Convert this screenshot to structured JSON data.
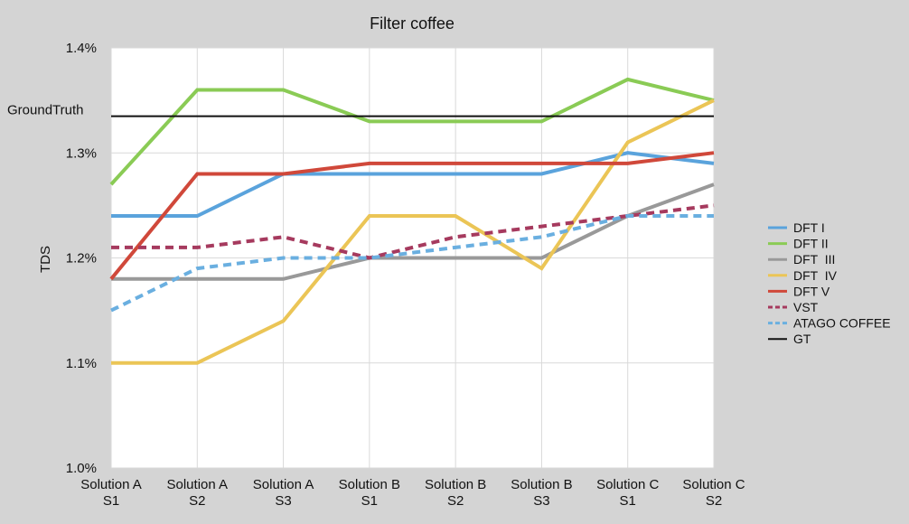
{
  "chart_data": {
    "type": "line",
    "title": "Filter coffee",
    "xlabel": "",
    "ylabel": "TDS",
    "ylim": [
      1.0,
      1.4
    ],
    "y_ticks": [
      1.0,
      1.1,
      1.2,
      1.3,
      1.4
    ],
    "y_tick_labels": [
      "1.0%",
      "1.1%",
      "1.2%",
      "1.3%",
      "1.4%"
    ],
    "grid": true,
    "legend_position": "right",
    "categories": [
      [
        "Solution A",
        "S1"
      ],
      [
        "Solution A",
        "S2"
      ],
      [
        "Solution A",
        "S3"
      ],
      [
        "Solution B",
        "S1"
      ],
      [
        "Solution B",
        "S2"
      ],
      [
        "Solution B",
        "S3"
      ],
      [
        "Solution C",
        "S1"
      ],
      [
        "Solution C",
        "S2"
      ]
    ],
    "series": [
      {
        "name": "DFT I",
        "color": "#5aa3dc",
        "dash": false,
        "values": [
          1.24,
          1.24,
          1.28,
          1.28,
          1.28,
          1.28,
          1.3,
          1.29
        ]
      },
      {
        "name": "DFT II",
        "color": "#8acb55",
        "dash": false,
        "values": [
          1.27,
          1.36,
          1.36,
          1.33,
          1.33,
          1.33,
          1.37,
          1.35
        ]
      },
      {
        "name": "DFT  III",
        "color": "#999999",
        "dash": false,
        "values": [
          1.18,
          1.18,
          1.18,
          1.2,
          1.2,
          1.2,
          1.24,
          1.27
        ]
      },
      {
        "name": "DFT  IV",
        "color": "#ebc556",
        "dash": false,
        "values": [
          1.1,
          1.1,
          1.14,
          1.24,
          1.24,
          1.19,
          1.31,
          1.35
        ]
      },
      {
        "name": "DFT V",
        "color": "#d0483a",
        "dash": false,
        "values": [
          1.18,
          1.28,
          1.28,
          1.29,
          1.29,
          1.29,
          1.29,
          1.3
        ]
      },
      {
        "name": "VST",
        "color": "#a63a5e",
        "dash": true,
        "values": [
          1.21,
          1.21,
          1.22,
          1.2,
          1.22,
          1.23,
          1.24,
          1.25
        ]
      },
      {
        "name": "ATAGO COFFEE",
        "color": "#6aafe0",
        "dash": true,
        "values": [
          1.15,
          1.19,
          1.2,
          1.2,
          1.21,
          1.22,
          1.24,
          1.24
        ]
      },
      {
        "name": "GT",
        "color": "#111111",
        "dash": false,
        "values": [
          1.335,
          1.335,
          1.335,
          1.335,
          1.335,
          1.335,
          1.335,
          1.335
        ]
      }
    ],
    "annotations": [
      {
        "text": "GroundTruth",
        "y": 1.335
      }
    ]
  }
}
